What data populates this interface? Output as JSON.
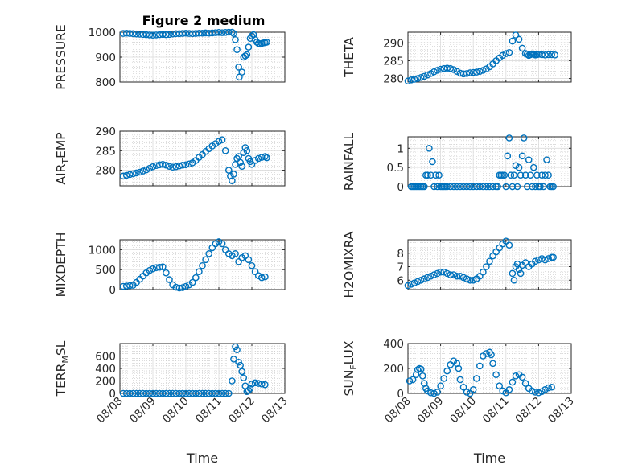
{
  "figure_title": "Figure 2 medium",
  "marker_color": "#0072BD",
  "chart_data": [
    {
      "id": "pressure",
      "type": "scatter",
      "title": "Figure 2 medium",
      "ylabel": "PRESSURE",
      "ylabel_sub": "",
      "ylabel_tail": "",
      "xlabel": "",
      "xlim": [
        0,
        5
      ],
      "ylim": [
        800,
        1000
      ],
      "yticks": [
        800,
        900,
        1000
      ],
      "xticks": [
        0,
        1,
        2,
        3,
        4,
        5
      ],
      "xticklabels": [],
      "grid": true,
      "marker": "circle",
      "x": [
        0.1,
        0.2,
        0.3,
        0.4,
        0.5,
        0.6,
        0.7,
        0.8,
        0.9,
        1.0,
        1.1,
        1.2,
        1.3,
        1.4,
        1.5,
        1.6,
        1.7,
        1.8,
        1.9,
        2.0,
        2.1,
        2.2,
        2.3,
        2.4,
        2.5,
        2.6,
        2.7,
        2.8,
        2.9,
        3.0,
        3.1,
        3.2,
        3.3,
        3.4,
        3.45,
        3.5,
        3.55,
        3.6,
        3.62,
        3.7,
        3.75,
        3.8,
        3.85,
        3.9,
        3.95,
        4.0,
        4.05,
        4.1,
        4.15,
        4.2,
        4.25,
        4.3,
        4.35,
        4.4,
        4.45
      ],
      "y": [
        995,
        996,
        995,
        994,
        993,
        992,
        991,
        990,
        989,
        988,
        989,
        990,
        991,
        990,
        991,
        993,
        994,
        994,
        995,
        996,
        995,
        994,
        995,
        996,
        996,
        997,
        996,
        997,
        998,
        999,
        998,
        999,
        1000,
        1000,
        995,
        970,
        930,
        860,
        820,
        840,
        900,
        905,
        910,
        940,
        975,
        985,
        990,
        970,
        960,
        955,
        952,
        955,
        957,
        958,
        960
      ]
    },
    {
      "id": "theta",
      "type": "scatter",
      "ylabel": "THETA",
      "ylabel_sub": "",
      "ylabel_tail": "",
      "xlabel": "",
      "xlim": [
        0,
        5
      ],
      "ylim": [
        279,
        293
      ],
      "yticks": [
        280,
        285,
        290
      ],
      "xticks": [
        0,
        1,
        2,
        3,
        4,
        5
      ],
      "xticklabels": [],
      "grid": true,
      "marker": "circle",
      "x": [
        0.0,
        0.1,
        0.2,
        0.3,
        0.4,
        0.5,
        0.6,
        0.7,
        0.8,
        0.9,
        1.0,
        1.1,
        1.2,
        1.3,
        1.4,
        1.5,
        1.6,
        1.7,
        1.8,
        1.9,
        2.0,
        2.1,
        2.2,
        2.3,
        2.4,
        2.5,
        2.6,
        2.7,
        2.8,
        2.9,
        3.0,
        3.1,
        3.2,
        3.3,
        3.4,
        3.5,
        3.6,
        3.65,
        3.7,
        3.75,
        3.8,
        3.85,
        3.9,
        3.95,
        4.0,
        4.1,
        4.2,
        4.3,
        4.4,
        4.5
      ],
      "y": [
        279.3,
        279.6,
        279.8,
        280.0,
        280.3,
        280.6,
        281.0,
        281.4,
        281.9,
        282.3,
        282.6,
        282.8,
        282.9,
        282.8,
        282.5,
        282.0,
        281.5,
        281.3,
        281.4,
        281.6,
        281.7,
        281.8,
        282.0,
        282.3,
        282.7,
        283.3,
        284.1,
        285.0,
        285.8,
        286.5,
        287.0,
        287.3,
        290.5,
        292.2,
        291.0,
        288.5,
        287.0,
        286.8,
        286.5,
        286.7,
        286.9,
        286.8,
        286.6,
        286.7,
        286.8,
        286.7,
        286.6,
        286.7,
        286.7,
        286.6
      ]
    },
    {
      "id": "airtemp",
      "type": "scatter",
      "ylabel": "AIR",
      "ylabel_sub": "T",
      "ylabel_tail": "EMP",
      "xlabel": "",
      "xlim": [
        0,
        5
      ],
      "ylim": [
        276,
        290
      ],
      "yticks": [
        280,
        285,
        290
      ],
      "xticks": [
        0,
        1,
        2,
        3,
        4,
        5
      ],
      "xticklabels": [],
      "grid": true,
      "marker": "circle",
      "x": [
        0.1,
        0.2,
        0.3,
        0.4,
        0.5,
        0.6,
        0.7,
        0.8,
        0.9,
        1.0,
        1.1,
        1.2,
        1.3,
        1.4,
        1.5,
        1.6,
        1.7,
        1.8,
        1.9,
        2.0,
        2.1,
        2.2,
        2.3,
        2.4,
        2.5,
        2.6,
        2.7,
        2.8,
        2.9,
        3.0,
        3.1,
        3.2,
        3.3,
        3.35,
        3.4,
        3.45,
        3.5,
        3.55,
        3.6,
        3.65,
        3.7,
        3.75,
        3.8,
        3.85,
        3.9,
        3.95,
        4.0,
        4.1,
        4.2,
        4.3,
        4.4,
        4.45
      ],
      "y": [
        278.5,
        278.7,
        278.9,
        279.1,
        279.3,
        279.5,
        279.8,
        280.1,
        280.5,
        280.9,
        281.2,
        281.4,
        281.5,
        281.3,
        281.0,
        280.8,
        280.9,
        281.1,
        281.3,
        281.4,
        281.6,
        281.9,
        282.5,
        283.3,
        284.0,
        284.8,
        285.5,
        286.2,
        286.8,
        287.4,
        287.8,
        285.0,
        280.0,
        278.5,
        277.3,
        279.0,
        281.5,
        283.0,
        283.5,
        282.0,
        281.0,
        284.5,
        285.8,
        285.0,
        283.0,
        282.2,
        281.5,
        282.5,
        283.0,
        283.3,
        283.5,
        283.2
      ]
    },
    {
      "id": "rainfall",
      "type": "scatter",
      "ylabel": "RAINFALL",
      "ylabel_sub": "",
      "ylabel_tail": "",
      "xlabel": "",
      "xlim": [
        0,
        5
      ],
      "ylim": [
        0,
        1.3
      ],
      "yticks": [
        0,
        0.5,
        1
      ],
      "yticklabels": [
        "0",
        "0.5",
        "1"
      ],
      "xticks": [
        0,
        1,
        2,
        3,
        4,
        5
      ],
      "xticklabels": [],
      "grid": true,
      "marker": "circle",
      "x": [
        0.1,
        0.15,
        0.2,
        0.25,
        0.3,
        0.35,
        0.4,
        0.45,
        0.5,
        0.55,
        0.6,
        0.65,
        0.7,
        0.75,
        0.8,
        0.85,
        0.9,
        0.95,
        1.0,
        1.05,
        1.1,
        1.15,
        1.2,
        1.3,
        1.4,
        1.5,
        1.6,
        1.7,
        1.8,
        1.9,
        2.0,
        2.1,
        2.2,
        2.3,
        2.4,
        2.5,
        2.6,
        2.7,
        2.75,
        2.8,
        2.85,
        2.9,
        2.95,
        3.0,
        3.05,
        3.1,
        3.15,
        3.2,
        3.25,
        3.3,
        3.35,
        3.4,
        3.45,
        3.5,
        3.55,
        3.6,
        3.65,
        3.7,
        3.75,
        3.8,
        3.85,
        3.9,
        3.95,
        4.0,
        4.05,
        4.1,
        4.15,
        4.2,
        4.25,
        4.3,
        4.35,
        4.4,
        4.45
      ],
      "y": [
        0,
        0,
        0,
        0,
        0,
        0,
        0,
        0,
        0,
        0.3,
        0.3,
        1.0,
        0.3,
        0.65,
        0,
        0.3,
        0,
        0.3,
        0,
        0,
        0,
        0,
        0,
        0,
        0,
        0,
        0,
        0,
        0,
        0,
        0,
        0,
        0,
        0,
        0,
        0,
        0,
        0,
        0,
        0.3,
        0.3,
        0.3,
        0.3,
        0,
        0.8,
        1.27,
        0.3,
        0,
        0.3,
        0.55,
        0,
        0.5,
        0.3,
        0.8,
        1.27,
        0.3,
        0,
        0.7,
        0.3,
        0,
        0.5,
        0,
        0.3,
        0,
        0,
        0.3,
        0,
        0.3,
        0.7,
        0.3,
        0,
        0,
        0
      ]
    },
    {
      "id": "mixdepth",
      "type": "scatter",
      "ylabel": "MIXDEPTH",
      "ylabel_sub": "",
      "ylabel_tail": "",
      "xlabel": "",
      "xlim": [
        0,
        5
      ],
      "ylim": [
        0,
        1250
      ],
      "yticks": [
        0,
        500,
        1000
      ],
      "xticks": [
        0,
        1,
        2,
        3,
        4,
        5
      ],
      "xticklabels": [],
      "grid": true,
      "marker": "circle",
      "x": [
        0.1,
        0.2,
        0.3,
        0.4,
        0.5,
        0.6,
        0.7,
        0.8,
        0.9,
        1.0,
        1.1,
        1.2,
        1.3,
        1.4,
        1.5,
        1.6,
        1.7,
        1.8,
        1.9,
        2.0,
        2.1,
        2.2,
        2.3,
        2.4,
        2.5,
        2.6,
        2.7,
        2.8,
        2.9,
        3.0,
        3.1,
        3.2,
        3.3,
        3.4,
        3.5,
        3.6,
        3.7,
        3.8,
        3.9,
        4.0,
        4.1,
        4.2,
        4.3,
        4.4
      ],
      "y": [
        80,
        90,
        100,
        110,
        180,
        260,
        340,
        420,
        480,
        520,
        550,
        560,
        570,
        420,
        250,
        120,
        60,
        40,
        50,
        80,
        120,
        180,
        300,
        450,
        600,
        750,
        900,
        1050,
        1150,
        1200,
        1150,
        1000,
        900,
        850,
        900,
        700,
        800,
        850,
        750,
        600,
        450,
        350,
        300,
        320
      ]
    },
    {
      "id": "h2omixra",
      "type": "scatter",
      "ylabel": "H2OMIXRA",
      "ylabel_sub": "",
      "ylabel_tail": "",
      "xlabel": "",
      "xlim": [
        0,
        5
      ],
      "ylim": [
        5.3,
        9
      ],
      "yticks": [
        6,
        7,
        8
      ],
      "xticks": [
        0,
        1,
        2,
        3,
        4,
        5
      ],
      "xticklabels": [],
      "grid": true,
      "marker": "circle",
      "x": [
        0.0,
        0.1,
        0.2,
        0.3,
        0.4,
        0.5,
        0.6,
        0.7,
        0.8,
        0.9,
        1.0,
        1.1,
        1.2,
        1.3,
        1.4,
        1.5,
        1.6,
        1.7,
        1.8,
        1.9,
        2.0,
        2.1,
        2.2,
        2.3,
        2.4,
        2.5,
        2.6,
        2.7,
        2.8,
        2.9,
        3.0,
        3.1,
        3.2,
        3.25,
        3.3,
        3.35,
        3.4,
        3.45,
        3.5,
        3.6,
        3.7,
        3.8,
        3.9,
        4.0,
        4.1,
        4.2,
        4.3,
        4.4,
        4.45
      ],
      "y": [
        5.6,
        5.7,
        5.8,
        5.9,
        6.0,
        6.1,
        6.2,
        6.3,
        6.4,
        6.5,
        6.6,
        6.6,
        6.5,
        6.4,
        6.4,
        6.3,
        6.3,
        6.2,
        6.1,
        6.0,
        6.0,
        6.1,
        6.3,
        6.6,
        7.0,
        7.4,
        7.8,
        8.1,
        8.4,
        8.7,
        8.9,
        8.6,
        6.5,
        6.0,
        7.0,
        7.2,
        6.8,
        6.5,
        7.1,
        7.3,
        7.0,
        7.2,
        7.4,
        7.5,
        7.6,
        7.5,
        7.6,
        7.7,
        7.7
      ]
    },
    {
      "id": "terrmsl",
      "type": "scatter",
      "ylabel": "TERR",
      "ylabel_sub": "M",
      "ylabel_tail": "SL",
      "xlabel": "Time",
      "xlim": [
        0,
        5
      ],
      "ylim": [
        0,
        800
      ],
      "yticks": [
        0,
        200,
        400,
        600
      ],
      "xticks": [
        0,
        1,
        2,
        3,
        4,
        5
      ],
      "xticklabels": [
        "08/08",
        "08/09",
        "08/10",
        "08/11",
        "08/12",
        "08/13"
      ],
      "grid": true,
      "marker": "circle",
      "x": [
        0.1,
        0.2,
        0.3,
        0.4,
        0.5,
        0.6,
        0.7,
        0.8,
        0.9,
        1.0,
        1.1,
        1.2,
        1.3,
        1.4,
        1.5,
        1.6,
        1.7,
        1.8,
        1.9,
        2.0,
        2.1,
        2.2,
        2.3,
        2.4,
        2.5,
        2.6,
        2.7,
        2.8,
        2.9,
        3.0,
        3.1,
        3.2,
        3.3,
        3.4,
        3.45,
        3.5,
        3.55,
        3.6,
        3.65,
        3.7,
        3.75,
        3.8,
        3.85,
        3.9,
        3.95,
        4.0,
        4.1,
        4.2,
        4.3,
        4.4
      ],
      "y": [
        0,
        0,
        0,
        0,
        0,
        0,
        0,
        0,
        0,
        0,
        0,
        0,
        0,
        0,
        0,
        0,
        0,
        0,
        0,
        0,
        0,
        0,
        0,
        0,
        0,
        0,
        0,
        0,
        0,
        0,
        0,
        0,
        0,
        200,
        550,
        750,
        700,
        500,
        450,
        350,
        250,
        120,
        30,
        50,
        80,
        150,
        170,
        160,
        150,
        140
      ]
    },
    {
      "id": "sunflux",
      "type": "scatter",
      "ylabel": "SUN",
      "ylabel_sub": "F",
      "ylabel_tail": "LUX",
      "xlabel": "Time",
      "xlim": [
        0,
        5
      ],
      "ylim": [
        0,
        400
      ],
      "yticks": [
        0,
        200,
        400
      ],
      "xticks": [
        0,
        1,
        2,
        3,
        4,
        5
      ],
      "xticklabels": [
        "08/08",
        "08/09",
        "08/10",
        "08/11",
        "08/12",
        "08/13"
      ],
      "grid": true,
      "marker": "circle",
      "x": [
        0.05,
        0.15,
        0.25,
        0.3,
        0.35,
        0.4,
        0.45,
        0.5,
        0.55,
        0.6,
        0.7,
        0.8,
        0.9,
        1.0,
        1.1,
        1.2,
        1.3,
        1.4,
        1.5,
        1.55,
        1.6,
        1.7,
        1.8,
        1.9,
        2.0,
        2.1,
        2.2,
        2.3,
        2.4,
        2.5,
        2.55,
        2.6,
        2.7,
        2.8,
        2.9,
        3.0,
        3.1,
        3.2,
        3.3,
        3.4,
        3.5,
        3.6,
        3.7,
        3.8,
        3.9,
        4.0,
        4.1,
        4.2,
        4.3,
        4.4
      ],
      "y": [
        100,
        110,
        150,
        190,
        200,
        195,
        140,
        80,
        40,
        20,
        5,
        0,
        10,
        60,
        120,
        180,
        230,
        260,
        240,
        200,
        110,
        50,
        10,
        0,
        30,
        120,
        220,
        300,
        320,
        330,
        310,
        240,
        150,
        60,
        20,
        5,
        30,
        90,
        140,
        150,
        130,
        80,
        40,
        20,
        10,
        5,
        15,
        30,
        45,
        50
      ]
    }
  ]
}
